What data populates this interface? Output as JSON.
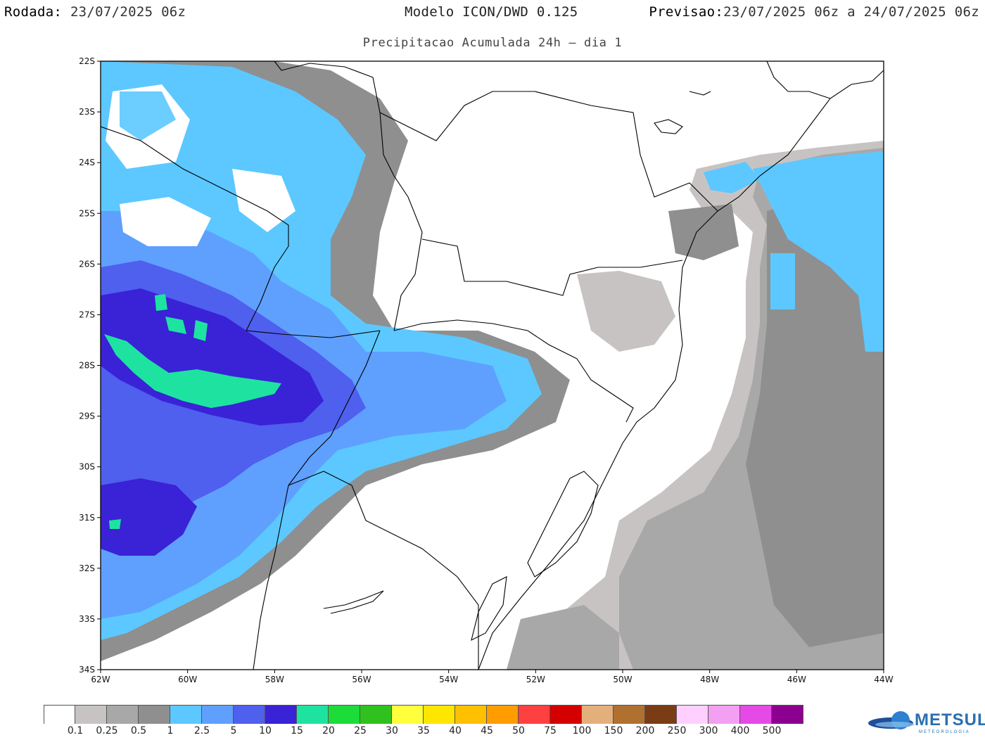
{
  "header": {
    "run_label": "Rodada:",
    "run_value": "23/07/2025 06z",
    "model_label": "Modelo ICON/DWD 0.125",
    "forecast_label": "Previsao:",
    "forecast_value": "23/07/2025 06z a 24/07/2025 06z",
    "subtitle": "Precipitacao Acumulada 24h – dia 1"
  },
  "map": {
    "lat_labels": [
      "22S",
      "23S",
      "24S",
      "25S",
      "26S",
      "27S",
      "28S",
      "29S",
      "30S",
      "31S",
      "32S",
      "33S",
      "34S"
    ],
    "lon_labels": [
      "62W",
      "60W",
      "58W",
      "56W",
      "54W",
      "52W",
      "50W",
      "48W",
      "46W",
      "44W"
    ],
    "extent": {
      "lon_min": -62,
      "lon_max": -44,
      "lat_min": -34,
      "lat_max": -22
    }
  },
  "legend": {
    "colors": [
      "#ffffff",
      "#c8c3c3",
      "#a8a8a8",
      "#8f8f8f",
      "#5cc8ff",
      "#5fa0ff",
      "#4f5fee",
      "#3a22d6",
      "#1ee3a0",
      "#1cdc3a",
      "#2fc21e",
      "#ffff3c",
      "#ffe600",
      "#ffc000",
      "#ff9d00",
      "#ff4040",
      "#d40000",
      "#e3b07c",
      "#b07030",
      "#7a3c14",
      "#ffd0ff",
      "#f3a0f3",
      "#e64ae6",
      "#8c0090"
    ],
    "labels": [
      "0.1",
      "0.25",
      "0.5",
      "1",
      "2.5",
      "5",
      "10",
      "15",
      "20",
      "25",
      "30",
      "35",
      "40",
      "45",
      "50",
      "75",
      "100",
      "150",
      "200",
      "250",
      "300",
      "400",
      "500"
    ]
  },
  "logo": {
    "text": "METSUL",
    "subtext": "METEOROLOGIA"
  }
}
